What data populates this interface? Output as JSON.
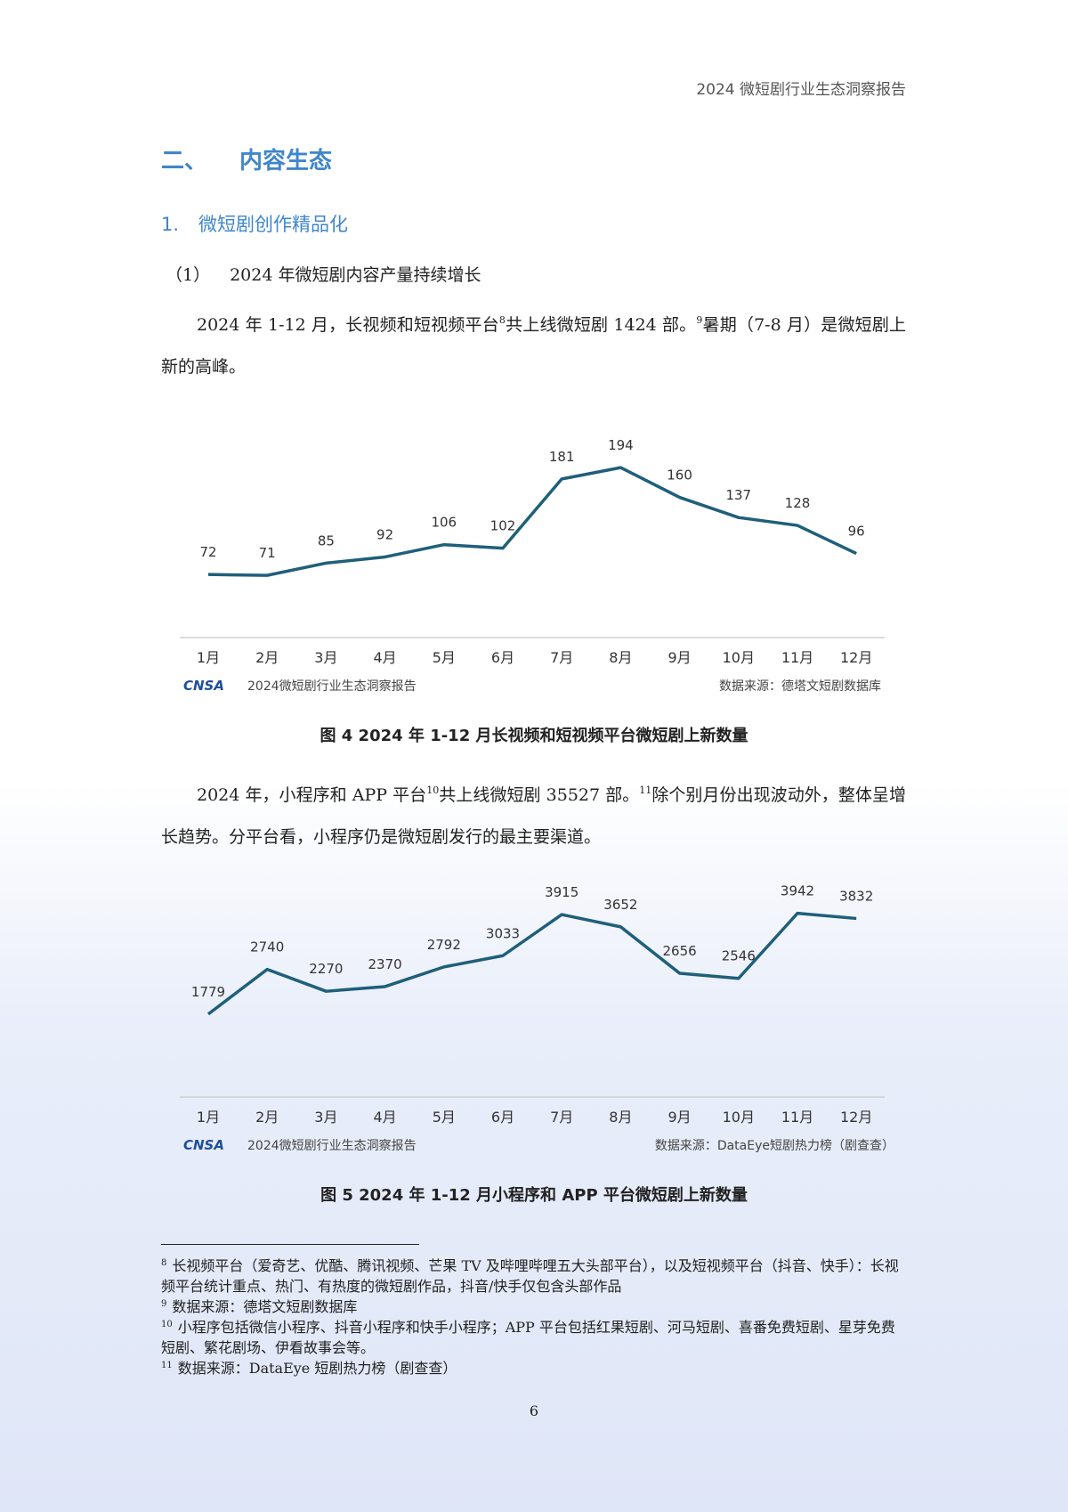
{
  "header": "2024 微短剧行业生态洞察报告",
  "heading": {
    "number": "二、",
    "title": "内容生态"
  },
  "subheading": {
    "number": "1.",
    "title": "微短剧创作精品化"
  },
  "subsubheading": {
    "number": "（1）",
    "title": "2024 年微短剧内容产量持续增长"
  },
  "paragraphs": [
    {
      "parts": [
        {
          "text": "2024 年 1-12 月，长视频和短视频平台"
        },
        {
          "sup": "8"
        },
        {
          "text": "共上线微短剧 1424 部。"
        },
        {
          "sup": "9"
        },
        {
          "text": "暑期（7-8 月）是微短剧上新的高峰。"
        }
      ]
    },
    {
      "parts": [
        {
          "text": "2024 年，小程序和 APP 平台"
        },
        {
          "sup": "10"
        },
        {
          "text": "共上线微短剧 35527 部。"
        },
        {
          "sup": "11"
        },
        {
          "text": "除个别月份出现波动外，整体呈增长趋势。分平台看，小程序仍是微短剧发行的最主要渠道。"
        }
      ]
    }
  ],
  "chart_data": [
    {
      "type": "line",
      "categories": [
        "1月",
        "2月",
        "3月",
        "4月",
        "5月",
        "6月",
        "7月",
        "8月",
        "9月",
        "10月",
        "11月",
        "12月"
      ],
      "values": [
        72,
        71,
        85,
        92,
        106,
        102,
        181,
        194,
        160,
        137,
        128,
        96
      ],
      "color": "#1f5f7a",
      "ylim": [
        0,
        250
      ],
      "grid": false,
      "logo": "CNSA",
      "brand": "2024微短剧行业生态洞察报告",
      "source": "数据来源：德塔文短剧数据库",
      "caption": "图 4 2024 年 1-12 月长视频和短视频平台微短剧上新数量"
    },
    {
      "type": "line",
      "categories": [
        "1月",
        "2月",
        "3月",
        "4月",
        "5月",
        "6月",
        "7月",
        "8月",
        "9月",
        "10月",
        "11月",
        "12月"
      ],
      "values": [
        1779,
        2740,
        2270,
        2370,
        2792,
        3033,
        3915,
        3652,
        2656,
        2546,
        3942,
        3832
      ],
      "color": "#1f5f7a",
      "ylim": [
        0,
        4700
      ],
      "grid": false,
      "logo": "CNSA",
      "brand": "2024微短剧行业生态洞察报告",
      "source": "数据来源：DataEye短剧热力榜（剧查查）",
      "caption": "图 5 2024 年 1-12 月小程序和 APP 平台微短剧上新数量"
    }
  ],
  "footnotes": [
    {
      "number": "8",
      "text": "长视频平台（爱奇艺、优酷、腾讯视频、芒果 TV 及哔哩哔哩五大头部平台），以及短视频平台（抖音、快手）：长视频平台统计重点、热门、有热度的微短剧作品，抖音/快手仅包含头部作品"
    },
    {
      "number": "9",
      "text": "数据来源：德塔文短剧数据库"
    },
    {
      "number": "10",
      "text": "小程序包括微信小程序、抖音小程序和快手小程序；APP 平台包括红果短剧、河马短剧、喜番免费短剧、星芽免费短剧、繁花剧场、伊看故事会等。"
    },
    {
      "number": "11",
      "text": "数据来源：DataEye 短剧热力榜（剧查查）"
    }
  ],
  "page_number": "6"
}
